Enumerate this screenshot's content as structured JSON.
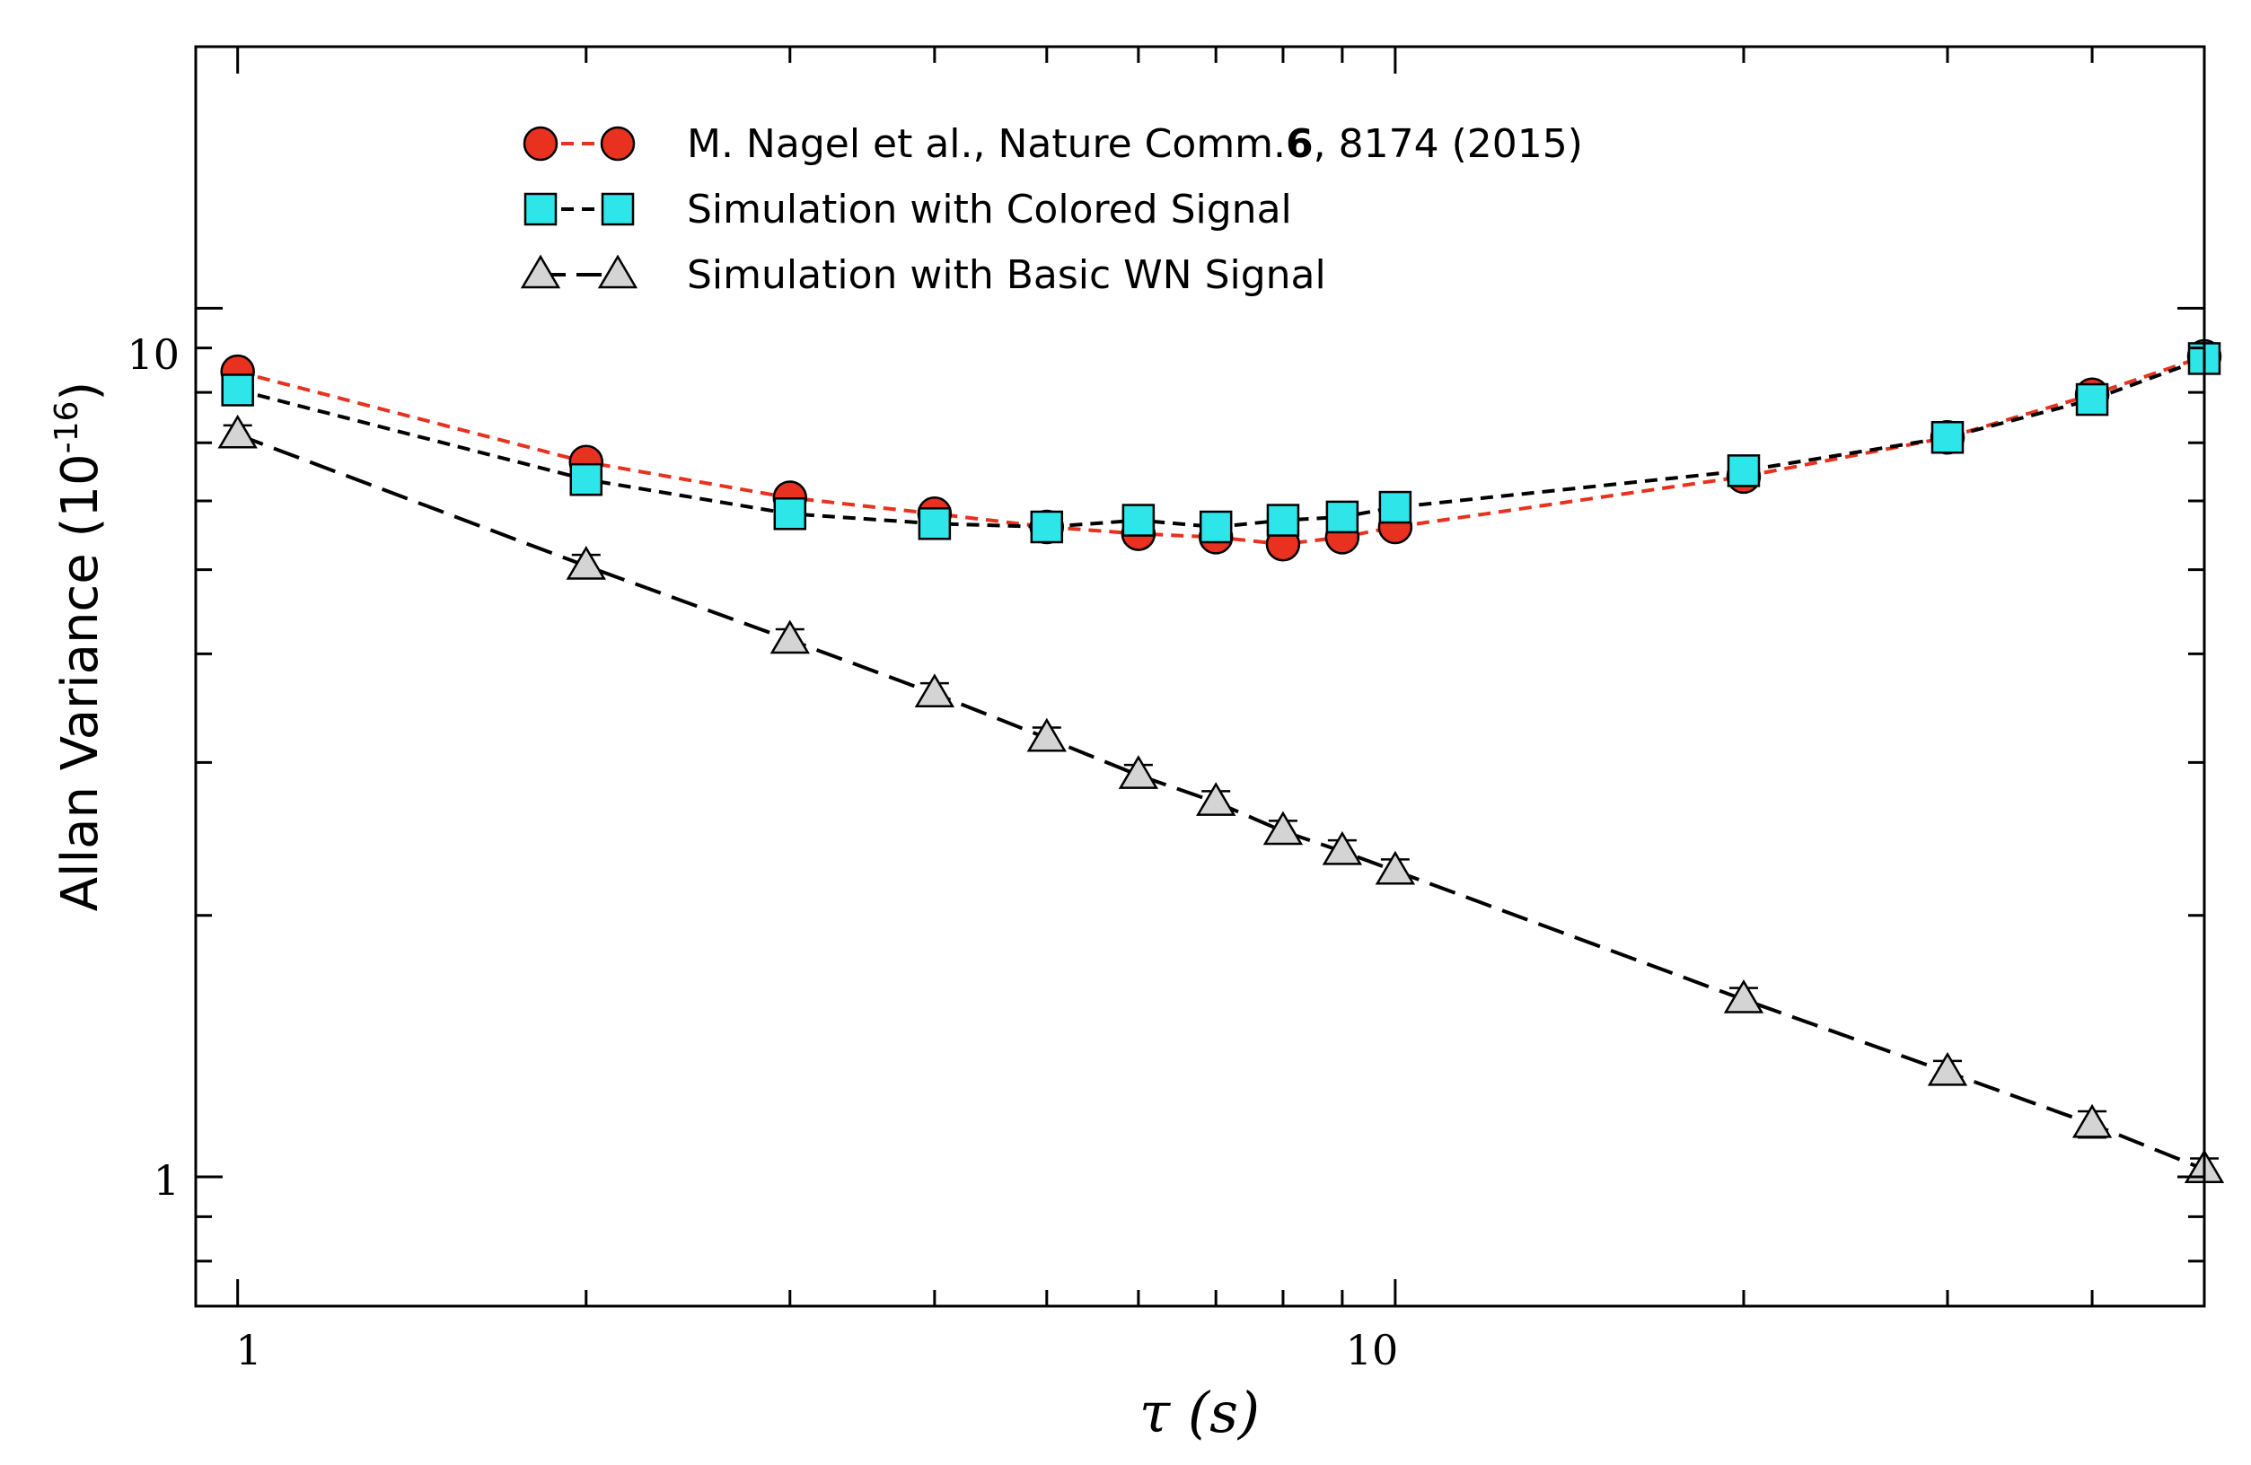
{
  "chart_data": {
    "type": "scatter",
    "title": "",
    "xlabel": "τ (s)",
    "ylabel_main": "Allan Variance (10",
    "ylabel_sup": "-16",
    "ylabel_close": ")",
    "x_scale": "log",
    "y_scale": "log",
    "xlim": [
      0.92,
      50
    ],
    "ylim": [
      0.71,
      20
    ],
    "x_tick_labels": [
      "1",
      "10"
    ],
    "y_tick_labels": [
      "1",
      "10"
    ],
    "grid": false,
    "legend_position": "top-left",
    "x": [
      1,
      2,
      3,
      4,
      5,
      6,
      7,
      8,
      9,
      10,
      20,
      30,
      40,
      50
    ],
    "series": [
      {
        "name_pre": "M. Nagel et al., Nature Comm.",
        "name_bold": "6",
        "name_post": ", 8174 (2015)",
        "marker": "circle",
        "marker_color": "#e8311e",
        "line_color": "#e8311e",
        "line_style": "short-dash",
        "values": [
          8.45,
          6.65,
          6.05,
          5.8,
          5.6,
          5.5,
          5.45,
          5.35,
          5.45,
          5.6,
          6.4,
          7.1,
          7.95,
          8.8
        ]
      },
      {
        "name": "Simulation with Colored Signal",
        "marker": "square",
        "marker_color": "#2ee6ea",
        "line_color": "#000000",
        "line_style": "short-dash",
        "values": [
          8.05,
          6.35,
          5.8,
          5.65,
          5.6,
          5.7,
          5.6,
          5.7,
          5.75,
          5.9,
          6.5,
          7.1,
          7.85,
          8.75
        ],
        "errors": [
          0.25,
          0.25,
          0.2,
          0.2,
          0.2,
          0.2,
          0.2,
          0.2,
          0.2,
          0.2,
          0.2,
          0.2,
          0.2,
          0.2
        ]
      },
      {
        "name": "Simulation with Basic WN Signal",
        "marker": "triangle",
        "marker_color": "#d4d4d4",
        "line_color": "#000000",
        "line_style": "long-dash",
        "values": [
          7.15,
          5.05,
          4.15,
          3.6,
          3.2,
          2.9,
          2.7,
          2.5,
          2.37,
          2.25,
          1.6,
          1.32,
          1.15,
          1.02
        ],
        "errors": [
          0.18,
          0.15,
          0.12,
          0.1,
          0.09,
          0.08,
          0.08,
          0.07,
          0.07,
          0.07,
          0.05,
          0.04,
          0.04,
          0.03
        ]
      }
    ]
  }
}
